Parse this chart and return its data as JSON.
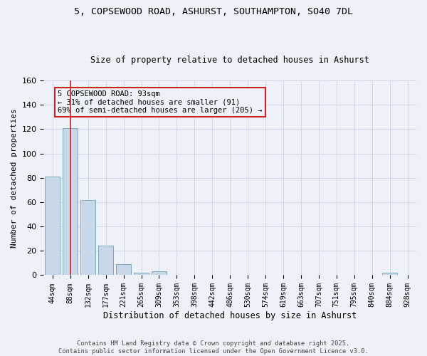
{
  "title1": "5, COPSEWOOD ROAD, ASHURST, SOUTHAMPTON, SO40 7DL",
  "title2": "Size of property relative to detached houses in Ashurst",
  "xlabel": "Distribution of detached houses by size in Ashurst",
  "ylabel": "Number of detached properties",
  "categories": [
    "44sqm",
    "88sqm",
    "132sqm",
    "177sqm",
    "221sqm",
    "265sqm",
    "309sqm",
    "353sqm",
    "398sqm",
    "442sqm",
    "486sqm",
    "530sqm",
    "574sqm",
    "619sqm",
    "663sqm",
    "707sqm",
    "751sqm",
    "795sqm",
    "840sqm",
    "884sqm",
    "928sqm"
  ],
  "values": [
    81,
    121,
    62,
    24,
    9,
    2,
    3,
    0,
    0,
    0,
    0,
    0,
    0,
    0,
    0,
    0,
    0,
    0,
    0,
    2,
    0
  ],
  "bar_color": "#c8d8e8",
  "bar_edge_color": "#7aaabb",
  "grid_color": "#ccd8e8",
  "bg_color": "#eef2f8",
  "vline_color": "#cc2222",
  "vline_pos": 1.0,
  "annotation_text": "5 COPSEWOOD ROAD: 93sqm\n← 31% of detached houses are smaller (91)\n69% of semi-detached houses are larger (205) →",
  "annotation_box_color": "#cc2222",
  "footer1": "Contains HM Land Registry data © Crown copyright and database right 2025.",
  "footer2": "Contains public sector information licensed under the Open Government Licence v3.0.",
  "ylim": [
    0,
    160
  ],
  "yticks": [
    0,
    20,
    40,
    60,
    80,
    100,
    120,
    140,
    160
  ]
}
